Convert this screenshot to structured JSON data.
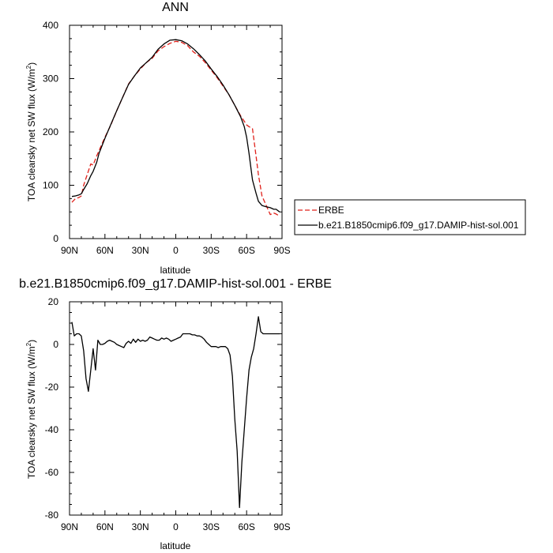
{
  "chart_data": [
    {
      "type": "line",
      "title": "ANN",
      "xlabel": "latitude",
      "ylabel": "TOA clearsky net SW flux (W/m²)",
      "ylabel_base": "TOA clearsky net SW flux (W/m",
      "ylabel_sup": "2",
      "ylabel_end": ")",
      "xlim": [
        -90,
        90
      ],
      "ylim": [
        0,
        400
      ],
      "x_ticks": [
        -90,
        -60,
        -30,
        0,
        30,
        60,
        90
      ],
      "x_tick_labels": [
        "90N",
        "60N",
        "30N",
        "0",
        "30S",
        "60S",
        "90S"
      ],
      "y_ticks": [
        0,
        100,
        200,
        300,
        400
      ],
      "y_tick_labels": [
        "0",
        "100",
        "200",
        "300",
        "400"
      ],
      "legend": "right",
      "series": [
        {
          "name": "ERBE",
          "color": "#e0201a",
          "dash": true,
          "x": [
            -88,
            -85,
            -82,
            -80,
            -78,
            -75,
            -72,
            -70,
            -67,
            -65,
            -60,
            -55,
            -50,
            -45,
            -40,
            -35,
            -30,
            -25,
            -20,
            -15,
            -10,
            -5,
            0,
            5,
            10,
            15,
            20,
            25,
            30,
            35,
            40,
            45,
            50,
            55,
            58,
            60,
            62,
            65,
            68,
            70,
            73,
            76,
            80,
            83,
            85,
            88
          ],
          "y": [
            68,
            75,
            77,
            80,
            100,
            120,
            140,
            138,
            155,
            165,
            190,
            213,
            240,
            265,
            290,
            305,
            318,
            330,
            338,
            352,
            360,
            366,
            370,
            368,
            362,
            350,
            342,
            330,
            316,
            302,
            286,
            270,
            250,
            230,
            220,
            213,
            210,
            206,
            155,
            120,
            80,
            65,
            45,
            48,
            46,
            42
          ]
        },
        {
          "name": "b.e21.B1850cmip6.f09_g17.DAMIP-hist-sol.001",
          "color": "#000000",
          "dash": false,
          "x": [
            -88,
            -85,
            -82,
            -80,
            -78,
            -75,
            -72,
            -70,
            -67,
            -65,
            -60,
            -55,
            -50,
            -45,
            -40,
            -35,
            -30,
            -25,
            -20,
            -15,
            -10,
            -5,
            0,
            5,
            10,
            15,
            20,
            25,
            30,
            35,
            40,
            45,
            50,
            55,
            58,
            60,
            62,
            65,
            68,
            70,
            73,
            76,
            80,
            83,
            85,
            88
          ],
          "y": [
            79,
            80,
            82,
            84,
            92,
            103,
            118,
            126,
            143,
            160,
            188,
            214,
            240,
            265,
            289,
            305,
            320,
            330,
            340,
            355,
            365,
            372,
            373,
            371,
            365,
            356,
            345,
            333,
            318,
            304,
            288,
            270,
            250,
            228,
            210,
            190,
            160,
            110,
            85,
            70,
            62,
            60,
            58,
            55,
            55,
            50
          ]
        }
      ]
    },
    {
      "type": "line",
      "title": "b.e21.B1850cmip6.f09_g17.DAMIP-hist-sol.001 - ERBE",
      "xlabel": "latitude",
      "ylabel": "TOA clearsky net SW flux (W/m²)",
      "ylabel_base": "TOA clearsky net SW flux (W/m",
      "ylabel_sup": "2",
      "ylabel_end": ")",
      "xlim": [
        -90,
        90
      ],
      "ylim": [
        -80,
        20
      ],
      "x_ticks": [
        -90,
        -60,
        -30,
        0,
        30,
        60,
        90
      ],
      "x_tick_labels": [
        "90N",
        "60N",
        "30N",
        "0",
        "30S",
        "60S",
        "90S"
      ],
      "y_ticks": [
        -80,
        -60,
        -40,
        -20,
        0,
        20
      ],
      "y_tick_labels": [
        "-80",
        "-60",
        "-40",
        "-20",
        "0",
        "20"
      ],
      "series": [
        {
          "color": "#000000",
          "x": [
            -88,
            -86,
            -84,
            -82,
            -80,
            -78,
            -76,
            -74,
            -72,
            -70,
            -68,
            -66,
            -64,
            -62,
            -60,
            -58,
            -56,
            -54,
            -52,
            -50,
            -48,
            -46,
            -44,
            -42,
            -40,
            -38,
            -36,
            -34,
            -32,
            -30,
            -28,
            -26,
            -24,
            -22,
            -20,
            -18,
            -16,
            -14,
            -12,
            -10,
            -8,
            -6,
            -4,
            -2,
            0,
            2,
            4,
            6,
            8,
            10,
            12,
            14,
            16,
            18,
            20,
            22,
            24,
            26,
            28,
            30,
            32,
            34,
            36,
            38,
            40,
            42,
            44,
            46,
            48,
            50,
            52,
            54,
            56,
            58,
            60,
            62,
            64,
            66,
            68,
            70,
            72,
            74,
            76,
            78,
            80,
            82,
            84,
            86,
            88
          ],
          "y": [
            10.5,
            4,
            5,
            5,
            4,
            -3,
            -16,
            -22,
            -12,
            -2,
            -12,
            2,
            0,
            0,
            0.5,
            1.5,
            2,
            1.5,
            1,
            0,
            -0.5,
            -1,
            -1.5,
            0.5,
            1.5,
            0.5,
            2.5,
            1,
            2.5,
            1.5,
            2,
            1.5,
            2,
            3.5,
            3,
            2.5,
            2,
            2,
            3,
            2.5,
            3,
            2.5,
            1.5,
            2,
            2.5,
            3,
            3.5,
            5,
            5,
            5,
            5,
            4.5,
            4.5,
            4,
            4,
            3.5,
            2.5,
            1,
            0,
            -1,
            -1,
            -1,
            -1.5,
            -1,
            -1,
            -1,
            -2,
            -5,
            -15,
            -35,
            -50,
            -76.5,
            -55,
            -40,
            -25,
            -12,
            -6,
            -2,
            5,
            13,
            6,
            5,
            5,
            5,
            5,
            5,
            5,
            5,
            5
          ]
        }
      ]
    }
  ]
}
